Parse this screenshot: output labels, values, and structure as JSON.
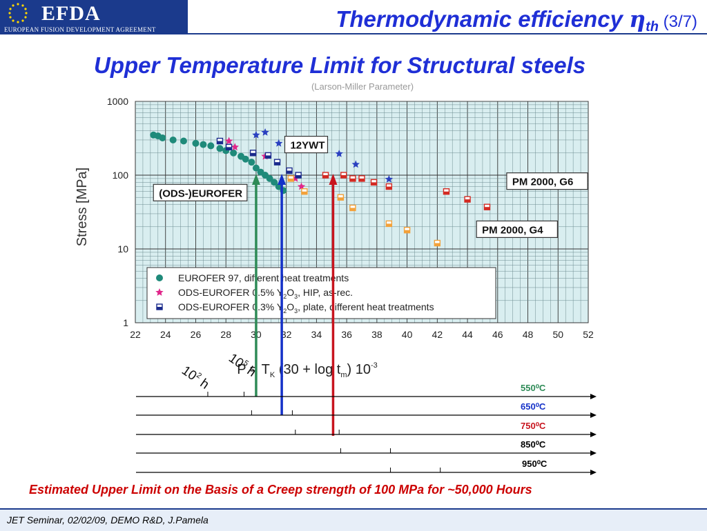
{
  "header": {
    "logo_text": "EFDA",
    "logo_subtitle": "EUROPEAN FUSION DEVELOPMENT AGREEMENT",
    "title_main": "Thermodynamic efficiency ",
    "title_symbol": "η",
    "title_subscript": "th",
    "title_page": " (3/7)",
    "subtitle": "Upper Temperature Limit for Structural steels",
    "cropped_text": "(Larson-Miller Parameter)"
  },
  "chart_data": {
    "type": "scatter",
    "ylabel": "Stress [MPa]",
    "yscale": "log",
    "ylim": [
      1,
      1000
    ],
    "yticks": [
      "1",
      "10",
      "100",
      "1000"
    ],
    "xlim": [
      22,
      52
    ],
    "xticks": [
      "22",
      "24",
      "26",
      "28",
      "30",
      "32",
      "34",
      "36",
      "38",
      "40",
      "42",
      "44",
      "46",
      "48",
      "50",
      "52"
    ],
    "xlabel": "P = T",
    "xlabel_sub": "K",
    "xlabel_mid": " (30 + log t",
    "xlabel_sub2": "m",
    "xlabel_end": ") 10",
    "xlabel_exp": "-3",
    "series": [
      {
        "name": "EUROFER 97, different heat treatments",
        "marker": "circle",
        "color": "#1f8a7a",
        "points": [
          [
            23.2,
            350
          ],
          [
            23.5,
            340
          ],
          [
            23.8,
            320
          ],
          [
            24.5,
            300
          ],
          [
            25.2,
            290
          ],
          [
            26,
            270
          ],
          [
            26.5,
            260
          ],
          [
            27,
            250
          ],
          [
            27.6,
            230
          ],
          [
            28,
            215
          ],
          [
            28.5,
            200
          ],
          [
            29,
            180
          ],
          [
            29.3,
            165
          ],
          [
            29.7,
            150
          ],
          [
            30,
            125
          ],
          [
            30.3,
            110
          ],
          [
            30.6,
            100
          ],
          [
            30.9,
            90
          ],
          [
            31.2,
            80
          ],
          [
            31.5,
            70
          ],
          [
            31.8,
            62
          ]
        ]
      },
      {
        "name": "ODS-EUROFER 0.5% Y₂O₃, HIP, as-rec.",
        "marker": "star",
        "color": "#e0268a",
        "points": [
          [
            28.2,
            290
          ],
          [
            28.6,
            240
          ],
          [
            30.6,
            180
          ],
          [
            32.6,
            90
          ],
          [
            33,
            70
          ]
        ]
      },
      {
        "name": "ODS-EUROFER 0.3% Y₂O₃, plate, different heat treatments",
        "marker": "square",
        "color": "#1a2a8c",
        "points": [
          [
            27.6,
            290
          ],
          [
            28.2,
            240
          ],
          [
            29.8,
            200
          ],
          [
            30.8,
            185
          ],
          [
            31.4,
            150
          ],
          [
            32.2,
            115
          ],
          [
            32.8,
            100
          ]
        ]
      },
      {
        "name": "12YWT",
        "marker": "star",
        "color": "#2a40c0",
        "points": [
          [
            30,
            350
          ],
          [
            30.6,
            380
          ],
          [
            31.5,
            270
          ],
          [
            35.5,
            195
          ],
          [
            36.6,
            140
          ],
          [
            38.8,
            88
          ]
        ]
      },
      {
        "name": "PM 2000, G6",
        "marker": "square",
        "color": "#d42a22",
        "points": [
          [
            34.6,
            100
          ],
          [
            35.8,
            100
          ],
          [
            36.4,
            90
          ],
          [
            37,
            90
          ],
          [
            37.8,
            80
          ],
          [
            38.8,
            70
          ],
          [
            42.6,
            60
          ],
          [
            44,
            47
          ],
          [
            45.3,
            37
          ]
        ]
      },
      {
        "name": "PM 2000, G4",
        "marker": "square",
        "color": "#f3a13a",
        "points": [
          [
            32.3,
            90
          ],
          [
            33.2,
            60
          ],
          [
            35.6,
            50
          ],
          [
            36.4,
            36
          ],
          [
            38.8,
            22
          ],
          [
            40,
            18
          ],
          [
            42,
            12
          ]
        ]
      }
    ],
    "legend": [
      {
        "marker": "circle",
        "color": "#1f8a7a",
        "label": "EUROFER 97, different heat treatments"
      },
      {
        "marker": "star",
        "color": "#e0268a",
        "label_pre": "ODS-EUROFER 0.5% Y",
        "sub1": "2",
        "mid": "O",
        "sub2": "3",
        "label_post": ", HIP, as-rec."
      },
      {
        "marker": "square",
        "color": "#1a2a8c",
        "label_pre": "ODS-EUROFER 0.3% Y",
        "sub1": "2",
        "mid": "O",
        "sub2": "3",
        "label_post": ", plate, different heat treatments"
      }
    ],
    "annotations": [
      {
        "text": "12YWT",
        "x": 31.9,
        "y": 260,
        "anchor": "start"
      },
      {
        "text": "(ODS-)EUROFER",
        "x": 23.2,
        "y": 58,
        "anchor": "start"
      },
      {
        "text": "PM 2000, G6",
        "x": 46.6,
        "y": 83,
        "anchor": "start"
      },
      {
        "text": "PM 2000, G4",
        "x": 44.6,
        "y": 18.5,
        "anchor": "start"
      }
    ],
    "limits_at_100MPa": [
      {
        "temperature": "550⁰C",
        "P": 30,
        "color": "#2e8b57"
      },
      {
        "temperature": "650⁰C",
        "P": 31.7,
        "color": "#1431c8"
      },
      {
        "temperature": "750⁰C",
        "P": 35.1,
        "color": "#c8141e"
      }
    ],
    "time_labels": [
      {
        "text": "10",
        "exp": "2",
        "unit": " h"
      },
      {
        "text": "10",
        "exp": "5",
        "unit": " h"
      }
    ]
  },
  "temperature_axes": [
    {
      "label": "550⁰C",
      "color": "#2e8b57",
      "ticks": [
        26.8,
        29.2
      ]
    },
    {
      "label": "650⁰C",
      "color": "#1431c8",
      "ticks": [
        29.7,
        32.4
      ]
    },
    {
      "label": "750⁰C",
      "color": "#c8141e",
      "ticks": [
        32.6,
        35.5
      ]
    },
    {
      "label": "850⁰C",
      "color": "#000000",
      "ticks": [
        35.6,
        38.9
      ]
    },
    {
      "label": "950⁰C",
      "color": "#000000",
      "ticks": [
        38.9,
        42.2
      ]
    }
  ],
  "caption": "Estimated Upper Limit on the Basis of a Creep strength of 100 MPa for ~50,000 Hours",
  "footer": "JET Seminar, 02/02/09, DEMO R&D, J.Pamela"
}
